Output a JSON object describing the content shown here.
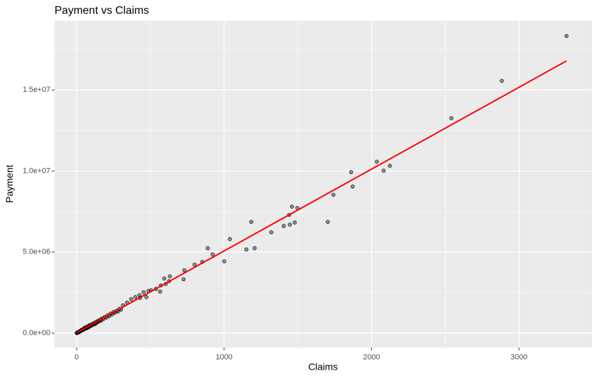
{
  "chart_data": {
    "type": "scatter",
    "title": "Payment vs Claims",
    "x_label": "Claims",
    "y_label": "Payment",
    "x": [
      3322,
      2883,
      2541,
      2036,
      1862,
      2082,
      2124,
      1872,
      1741,
      1703,
      1460,
      1497,
      1441,
      1479,
      1404,
      1446,
      1320,
      1184,
      1207,
      1151,
      1039,
      1001,
      889,
      922,
      852,
      800,
      730,
      725,
      632,
      627,
      594,
      604,
      571,
      538,
      505,
      487,
      454,
      426,
      398,
      370,
      342,
      430,
      473,
      566,
      314,
      5,
      8,
      10,
      12,
      15,
      18,
      20,
      22,
      25,
      28,
      30,
      33,
      35,
      38,
      40,
      42,
      45,
      48,
      50,
      52,
      55,
      58,
      60,
      63,
      65,
      68,
      70,
      72,
      75,
      78,
      80,
      85,
      88,
      90,
      95,
      100,
      105,
      110,
      115,
      120,
      125,
      130,
      135,
      140,
      145,
      150,
      160,
      165,
      170,
      180,
      190,
      200,
      210,
      220,
      230,
      240,
      250,
      260,
      270,
      280,
      290,
      300,
      3,
      2,
      1,
      6,
      14,
      24,
      32,
      44,
      62,
      84
    ],
    "y": [
      18330000,
      15560000,
      13260000,
      10570000,
      9930000,
      10020000,
      10320000,
      9040000,
      8530000,
      6860000,
      7800000,
      7720000,
      7290000,
      6820000,
      6610000,
      6690000,
      6220000,
      6860000,
      5240000,
      5160000,
      5800000,
      4430000,
      5240000,
      4860000,
      4390000,
      4220000,
      3880000,
      3320000,
      3500000,
      3200000,
      3370000,
      3030000,
      2940000,
      2730000,
      2640000,
      2600000,
      2520000,
      2340000,
      2220000,
      2090000,
      1880000,
      2170000,
      2220000,
      2560000,
      1710000,
      20000,
      45000,
      60000,
      50000,
      80000,
      95000,
      110000,
      90000,
      130000,
      150000,
      140000,
      170000,
      200000,
      180000,
      220000,
      190000,
      240000,
      260000,
      230000,
      300000,
      280000,
      320000,
      270000,
      350000,
      330000,
      310000,
      380000,
      360000,
      400000,
      340000,
      420000,
      390000,
      470000,
      430000,
      500000,
      460000,
      560000,
      520000,
      600000,
      540000,
      650000,
      590000,
      700000,
      660000,
      760000,
      720000,
      820000,
      760000,
      900000,
      860000,
      1000000,
      950000,
      1100000,
      1040000,
      1200000,
      1150000,
      1300000,
      1250000,
      1380000,
      1330000,
      1500000,
      1450000,
      10000,
      8000,
      5000,
      40000,
      55000,
      100000,
      190000,
      210000,
      360000,
      470000
    ],
    "color": "#000000",
    "fit": {
      "x": [
        0,
        3322
      ],
      "y": [
        20000,
        16790000
      ],
      "color": "#ff0000"
    },
    "xlim": [
      -150,
      3496
    ],
    "ylim": [
      -895000,
      19270000
    ],
    "xticks": [
      0,
      1000,
      2000,
      3000
    ],
    "yticks": [
      {
        "value": 0,
        "label": "0.0e+00"
      },
      {
        "value": 5000000,
        "label": "5.0e+06"
      },
      {
        "value": 10000000,
        "label": "1.0e+07"
      },
      {
        "value": 15000000,
        "label": "1.5e+07"
      }
    ],
    "grid": true
  }
}
